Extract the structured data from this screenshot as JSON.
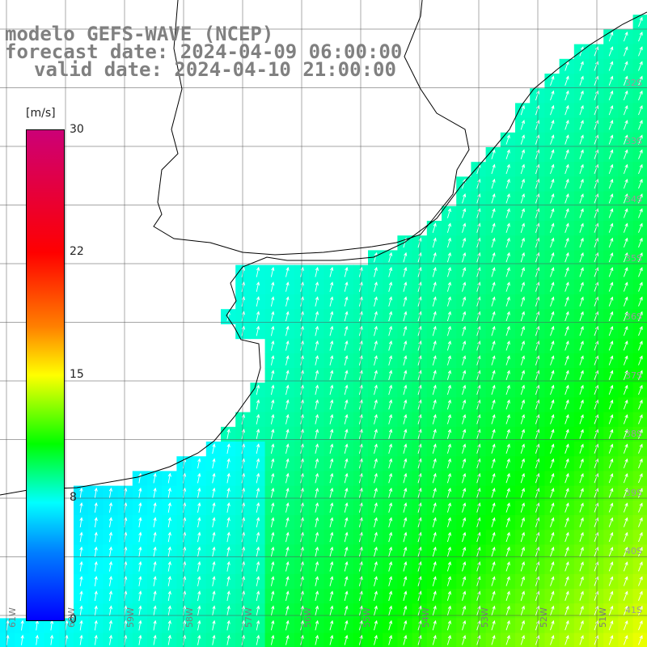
{
  "title": {
    "line1": "modelo GEFS-WAVE (NCEP)",
    "line2": "forecast date: 2024-04-09 06:00:00",
    "line3": "valid date: 2024-04-10 21:00:00"
  },
  "colorbar": {
    "unit": "[m/s]",
    "labels": [
      "30",
      "22",
      "15",
      "8",
      "0"
    ],
    "colors": [
      "#0000ff",
      "#0080ff",
      "#00ffff",
      "#00ff00",
      "#ffff00",
      "#ff7f00",
      "#ff0000",
      "#cc0077"
    ]
  },
  "axes": {
    "lat_labels": [
      "32S",
      "33S",
      "34S",
      "35S",
      "36S",
      "37S",
      "38S",
      "39S",
      "40S",
      "41S"
    ],
    "lon_labels": [
      "61W",
      "60W",
      "59W",
      "58W",
      "57W",
      "56W",
      "55W",
      "54W",
      "53W",
      "52W",
      "51W"
    ]
  },
  "field": {
    "variable": "wind speed",
    "direction": "arrows pointing north / north-northeast"
  }
}
